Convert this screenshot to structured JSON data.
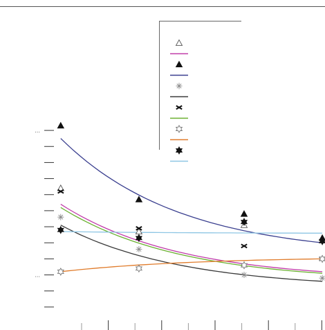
{
  "chart_data": {
    "type": "scatter",
    "title": "",
    "xlabel": "",
    "ylabel": "",
    "xlim": [
      0,
      10
    ],
    "ylim": [
      0,
      19
    ],
    "x_ticks": [
      0,
      1,
      2,
      3,
      4,
      5,
      6,
      7,
      8,
      9
    ],
    "y_ticks": [
      1,
      2,
      3,
      4,
      5,
      6,
      7,
      8,
      9,
      10,
      11,
      12
    ],
    "y_tick_labels": {
      "3": "...",
      "12": "..."
    },
    "grid": false,
    "legend_position": "top-right",
    "series": [
      {
        "kind": "points",
        "marker": "triangle-open",
        "color": "#555555",
        "x": [
          0.2,
          3.1,
          7.0
        ],
        "y": [
          8.4,
          5.7,
          6.1
        ]
      },
      {
        "kind": "curve",
        "color": "#c03aa8",
        "x": [
          0.2,
          9.9
        ],
        "y": [
          7.4,
          3.2
        ],
        "curvature": 0.55
      },
      {
        "kind": "points",
        "marker": "triangle-filled",
        "color": "#111111",
        "x": [
          0.2,
          3.1,
          7.0,
          9.9
        ],
        "y": [
          12.3,
          7.7,
          6.8,
          5.3
        ]
      },
      {
        "kind": "curve",
        "color": "#3a3f8f",
        "x": [
          0.2,
          9.9
        ],
        "y": [
          11.5,
          5.0
        ],
        "curvature": 0.55
      },
      {
        "kind": "points",
        "marker": "asterisk-open",
        "color": "#888888",
        "x": [
          0.2,
          3.1,
          7.0,
          9.9
        ],
        "y": [
          6.6,
          4.6,
          3.0,
          2.8
        ]
      },
      {
        "kind": "curve",
        "color": "#3a3a3a",
        "x": [
          0.2,
          9.9
        ],
        "y": [
          6.1,
          2.6
        ],
        "curvature": 0.55
      },
      {
        "kind": "points",
        "marker": "x-filled",
        "color": "#111111",
        "x": [
          0.2,
          3.1,
          7.0,
          9.9
        ],
        "y": [
          8.2,
          5.9,
          4.8,
          4.0
        ]
      },
      {
        "kind": "curve",
        "color": "#6ab030",
        "x": [
          0.2,
          9.9
        ],
        "y": [
          7.2,
          3.1
        ],
        "curvature": 0.55
      },
      {
        "kind": "points",
        "marker": "star-open",
        "color": "#777777",
        "x": [
          0.2,
          3.1,
          7.0,
          9.9
        ],
        "y": [
          3.2,
          3.4,
          3.6,
          4.0
        ]
      },
      {
        "kind": "curve",
        "color": "#e07b2a",
        "x": [
          0.2,
          9.9
        ],
        "y": [
          3.2,
          4.0
        ],
        "curvature": 0.5
      },
      {
        "kind": "points",
        "marker": "star-filled",
        "color": "#111111",
        "x": [
          0.2,
          3.1,
          7.0,
          9.9
        ],
        "y": [
          5.8,
          5.3,
          6.3,
          5.1
        ]
      },
      {
        "kind": "curve",
        "color": "#8ec6e4",
        "x": [
          0.2,
          9.9
        ],
        "y": [
          5.7,
          5.6
        ],
        "curvature": 0.5
      }
    ]
  }
}
